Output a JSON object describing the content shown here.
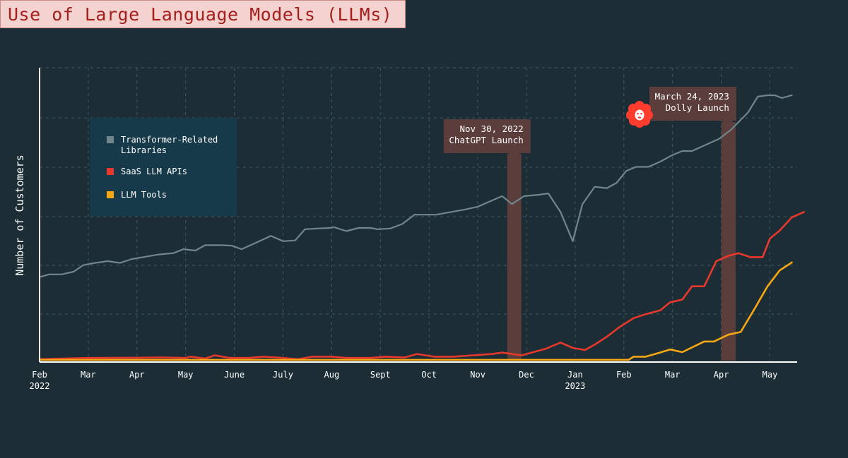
{
  "chart_data": {
    "type": "line",
    "title": "Use of Large Language Models (LLMs)",
    "xlabel": "",
    "ylabel": "Number of Customers",
    "xlim": [
      0,
      15.7
    ],
    "ylim": [
      0,
      100
    ],
    "grid": true,
    "legend_position": "upper-left",
    "x_ticks": [
      {
        "pos": 0,
        "label": "Feb",
        "sub": "2022"
      },
      {
        "pos": 1,
        "label": "Mar",
        "sub": ""
      },
      {
        "pos": 2,
        "label": "Apr",
        "sub": ""
      },
      {
        "pos": 3,
        "label": "May",
        "sub": ""
      },
      {
        "pos": 4,
        "label": "June",
        "sub": ""
      },
      {
        "pos": 5,
        "label": "July",
        "sub": ""
      },
      {
        "pos": 6,
        "label": "Aug",
        "sub": ""
      },
      {
        "pos": 7,
        "label": "Sept",
        "sub": ""
      },
      {
        "pos": 8,
        "label": "Oct",
        "sub": ""
      },
      {
        "pos": 9,
        "label": "Nov",
        "sub": ""
      },
      {
        "pos": 10,
        "label": "Dec",
        "sub": ""
      },
      {
        "pos": 11,
        "label": "Jan",
        "sub": "2023"
      },
      {
        "pos": 12,
        "label": "Feb",
        "sub": ""
      },
      {
        "pos": 13,
        "label": "Mar",
        "sub": ""
      },
      {
        "pos": 14,
        "label": "Apr",
        "sub": ""
      },
      {
        "pos": 15,
        "label": "May",
        "sub": ""
      }
    ],
    "series": [
      {
        "name": "Transformer-Related Libraries",
        "color": "#71858d",
        "points": [
          [
            0,
            31.5
          ],
          [
            0.2,
            32.5
          ],
          [
            0.45,
            32.5
          ],
          [
            0.7,
            33.5
          ],
          [
            0.9,
            36
          ],
          [
            1.1,
            36.7
          ],
          [
            1.4,
            37.5
          ],
          [
            1.65,
            36.8
          ],
          [
            1.9,
            38.3
          ],
          [
            2.2,
            39.2
          ],
          [
            2.45,
            40
          ],
          [
            2.75,
            40.5
          ],
          [
            2.95,
            42
          ],
          [
            3.2,
            41.5
          ],
          [
            3.4,
            43.5
          ],
          [
            3.75,
            43.5
          ],
          [
            3.95,
            43.3
          ],
          [
            4.15,
            42
          ],
          [
            4.45,
            44.5
          ],
          [
            4.75,
            47
          ],
          [
            5,
            45
          ],
          [
            5.25,
            45.3
          ],
          [
            5.45,
            49.5
          ],
          [
            5.7,
            49.8
          ],
          [
            5.95,
            50
          ],
          [
            6.05,
            50.3
          ],
          [
            6.3,
            48.8
          ],
          [
            6.55,
            50
          ],
          [
            6.8,
            50
          ],
          [
            6.95,
            49.5
          ],
          [
            7.2,
            49.8
          ],
          [
            7.45,
            51.5
          ],
          [
            7.7,
            55
          ],
          [
            7.95,
            55
          ],
          [
            8.15,
            55
          ],
          [
            8.45,
            56
          ],
          [
            8.75,
            57
          ],
          [
            9,
            58
          ],
          [
            9.25,
            60
          ],
          [
            9.5,
            62
          ],
          [
            9.7,
            59
          ],
          [
            9.95,
            62
          ],
          [
            10.25,
            62.5
          ],
          [
            10.45,
            63
          ],
          [
            10.7,
            56
          ],
          [
            10.95,
            45
          ],
          [
            11.15,
            59
          ],
          [
            11.4,
            65.5
          ],
          [
            11.65,
            65
          ],
          [
            11.85,
            67
          ],
          [
            12.05,
            71.5
          ],
          [
            12.25,
            73
          ],
          [
            12.5,
            73
          ],
          [
            12.75,
            75
          ],
          [
            13,
            77.5
          ],
          [
            13.2,
            79
          ],
          [
            13.4,
            79
          ],
          [
            13.7,
            81.5
          ],
          [
            13.95,
            83.5
          ],
          [
            14.2,
            87
          ],
          [
            14.55,
            93.5
          ],
          [
            14.75,
            99.5
          ],
          [
            14.95,
            100
          ],
          [
            15.1,
            100
          ],
          [
            15.25,
            99
          ],
          [
            15.45,
            100
          ]
        ]
      },
      {
        "name": "SaaS LLM APIs",
        "color": "#e8382b",
        "points": [
          [
            0,
            0.5
          ],
          [
            0.5,
            0.8
          ],
          [
            1,
            1
          ],
          [
            2,
            1.1
          ],
          [
            2.5,
            1.2
          ],
          [
            3,
            1
          ],
          [
            3.1,
            1.5
          ],
          [
            3.4,
            0.8
          ],
          [
            3.6,
            2
          ],
          [
            3.9,
            1
          ],
          [
            4.3,
            1
          ],
          [
            4.6,
            1.5
          ],
          [
            5,
            1
          ],
          [
            5.3,
            0.5
          ],
          [
            5.6,
            1.5
          ],
          [
            6,
            1.5
          ],
          [
            6.3,
            1
          ],
          [
            6.8,
            1
          ],
          [
            7.1,
            1.5
          ],
          [
            7.5,
            1.2
          ],
          [
            7.75,
            2.5
          ],
          [
            8.1,
            1.5
          ],
          [
            8.5,
            1.5
          ],
          [
            8.9,
            2
          ],
          [
            9.3,
            2.5
          ],
          [
            9.5,
            3
          ],
          [
            9.7,
            2.5
          ],
          [
            9.9,
            2
          ],
          [
            10.1,
            3
          ],
          [
            10.4,
            4.5
          ],
          [
            10.7,
            6.8
          ],
          [
            10.95,
            4.8
          ],
          [
            11.2,
            4
          ],
          [
            11.4,
            6
          ],
          [
            11.65,
            9
          ],
          [
            11.9,
            12.5
          ],
          [
            12.2,
            16
          ],
          [
            12.45,
            17.5
          ],
          [
            12.75,
            19
          ],
          [
            12.95,
            22
          ],
          [
            13.2,
            23
          ],
          [
            13.4,
            28
          ],
          [
            13.65,
            28
          ],
          [
            13.9,
            37.5
          ],
          [
            14.15,
            39.5
          ],
          [
            14.35,
            40.5
          ],
          [
            14.6,
            39
          ],
          [
            14.85,
            39
          ],
          [
            15.0,
            46
          ],
          [
            15.2,
            49
          ],
          [
            15.45,
            54
          ],
          [
            15.7,
            56
          ]
        ]
      },
      {
        "name": "LLM Tools",
        "color": "#f6a715",
        "points": [
          [
            0,
            0.3
          ],
          [
            2,
            0.3
          ],
          [
            4,
            0.3
          ],
          [
            6,
            0.3
          ],
          [
            8,
            0.3
          ],
          [
            10,
            0.3
          ],
          [
            12.1,
            0.3
          ],
          [
            12.2,
            1.5
          ],
          [
            12.45,
            1.5
          ],
          [
            12.7,
            2.8
          ],
          [
            12.95,
            4.2
          ],
          [
            13.2,
            3.2
          ],
          [
            13.65,
            7.2
          ],
          [
            13.85,
            7.2
          ],
          [
            14.15,
            9.8
          ],
          [
            14.4,
            10.8
          ],
          [
            14.7,
            20
          ],
          [
            14.95,
            28
          ],
          [
            15.2,
            34
          ],
          [
            15.45,
            37
          ]
        ]
      }
    ],
    "annotations": [
      {
        "x": 9.75,
        "date": "Nov 30, 2022",
        "event": "ChatGPT Launch"
      },
      {
        "x": 14.15,
        "date": "March 24, 2023",
        "event": "Dolly Launch"
      }
    ]
  },
  "colors": {
    "background": "#1c2d35",
    "legend_bg": "#173a4a",
    "title_bg": "#f3d2d0",
    "title_text": "#a51f1c",
    "grid": "#3e5a63",
    "annotation_band": "#5b3e3c",
    "dolly_icon": "#ff3c2d"
  },
  "icons": {
    "dolly": "dolly-sheep-icon"
  }
}
